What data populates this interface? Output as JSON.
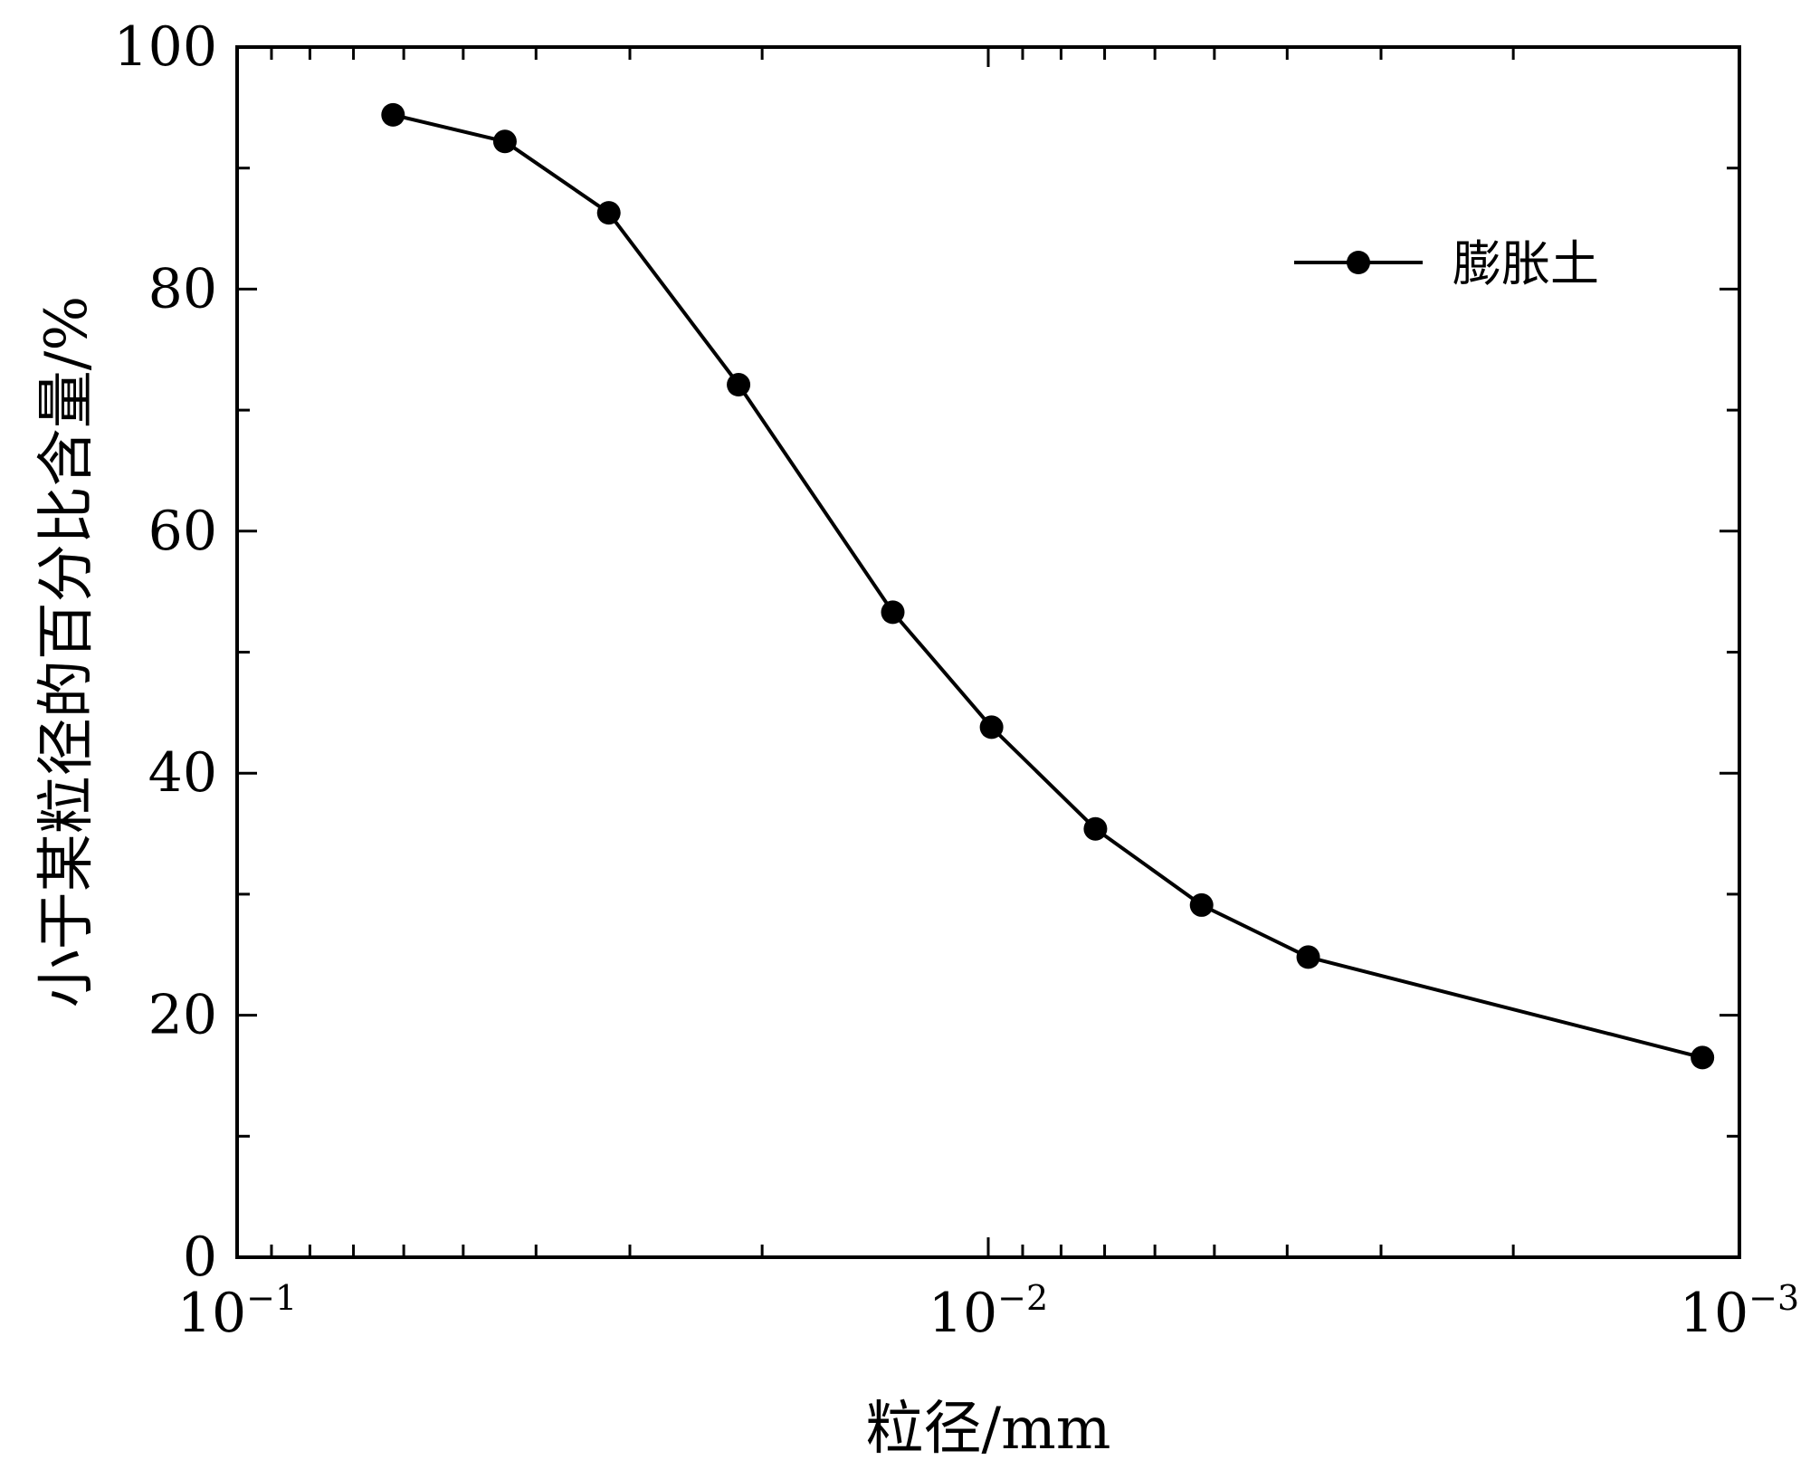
{
  "chart_data": {
    "type": "line",
    "xscale": "log",
    "x_reversed": true,
    "xlim": [
      0.1,
      0.001
    ],
    "ylim": [
      0,
      100
    ],
    "xlabel": "粒径/mm",
    "ylabel": "小于某粒径的百分比含量/%",
    "x_ticks": [
      {
        "value": 0.1,
        "base": "10",
        "exp": "−1"
      },
      {
        "value": 0.01,
        "base": "10",
        "exp": "−2"
      },
      {
        "value": 0.001,
        "base": "10",
        "exp": "−3"
      }
    ],
    "y_ticks": [
      "0",
      "20",
      "40",
      "60",
      "80",
      "100"
    ],
    "legend_position": "top-right",
    "series": [
      {
        "name": "膨胀土",
        "marker": "circle",
        "color": "#000000",
        "x": [
          0.062,
          0.044,
          0.032,
          0.0215,
          0.0134,
          0.0099,
          0.0072,
          0.0052,
          0.00375,
          0.00112
        ],
        "y": [
          94.4,
          92.2,
          86.3,
          72.1,
          53.3,
          43.8,
          35.4,
          29.1,
          24.8,
          16.5
        ]
      }
    ]
  }
}
